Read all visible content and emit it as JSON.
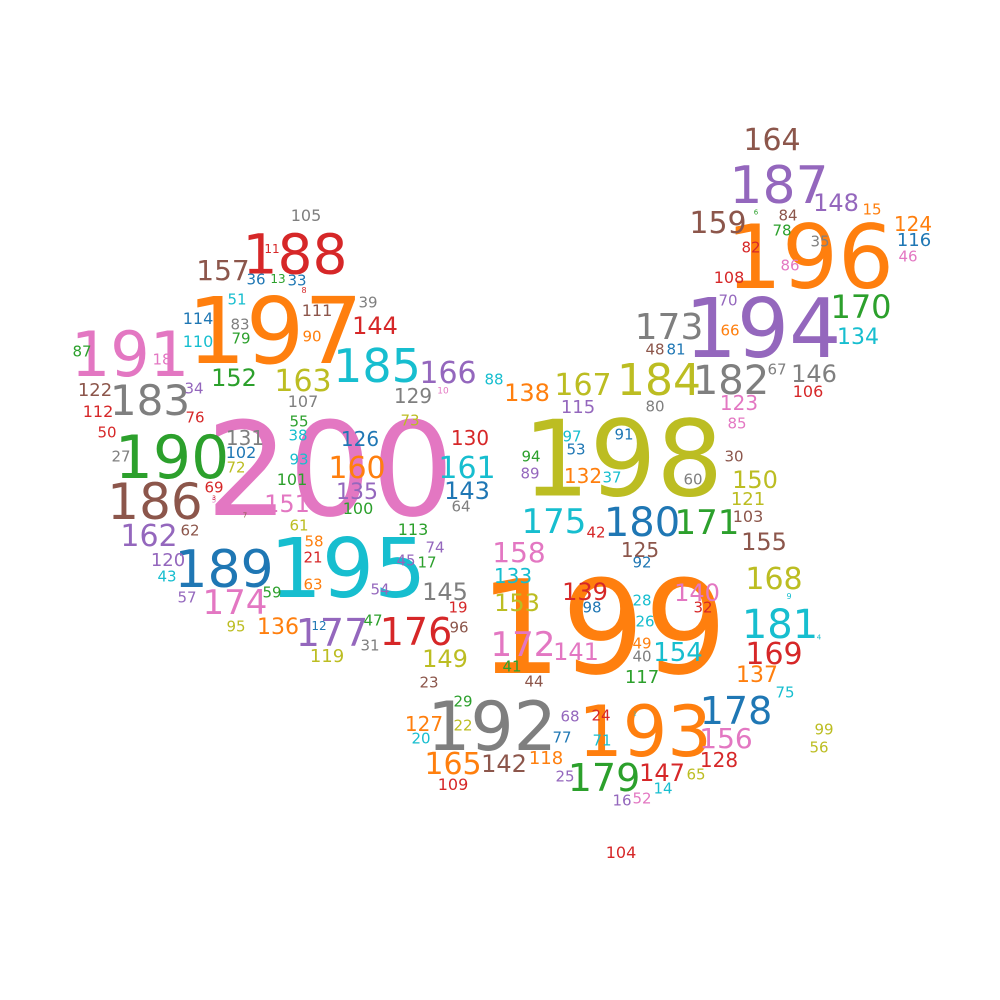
{
  "palette": {
    "blue": "#1f77b4",
    "orange": "#ff7f0e",
    "green": "#2ca02c",
    "red": "#d62728",
    "purple": "#9467bd",
    "brown": "#8c564b",
    "pink": "#e377c2",
    "gray": "#7f7f7f",
    "olive": "#bcbd22",
    "cyan": "#17becf"
  },
  "words": [
    {
      "text": "200",
      "color": "pink"
    },
    {
      "text": "199",
      "color": "orange"
    },
    {
      "text": "198",
      "color": "olive"
    },
    {
      "text": "197",
      "color": "orange"
    },
    {
      "text": "196",
      "color": "orange"
    },
    {
      "text": "195",
      "color": "cyan"
    },
    {
      "text": "194",
      "color": "purple"
    },
    {
      "text": "193",
      "color": "orange"
    },
    {
      "text": "192",
      "color": "gray"
    },
    {
      "text": "191",
      "color": "pink"
    },
    {
      "text": "190",
      "color": "green"
    },
    {
      "text": "189",
      "color": "blue"
    },
    {
      "text": "188",
      "color": "red"
    },
    {
      "text": "187",
      "color": "purple"
    },
    {
      "text": "186",
      "color": "brown"
    },
    {
      "text": "185",
      "color": "cyan"
    },
    {
      "text": "184",
      "color": "olive"
    },
    {
      "text": "183",
      "color": "gray"
    },
    {
      "text": "182",
      "color": "gray"
    },
    {
      "text": "181",
      "color": "cyan"
    },
    {
      "text": "180",
      "color": "blue"
    },
    {
      "text": "179",
      "color": "green"
    },
    {
      "text": "178",
      "color": "blue"
    },
    {
      "text": "177",
      "color": "purple"
    },
    {
      "text": "176",
      "color": "red"
    },
    {
      "text": "175",
      "color": "cyan"
    },
    {
      "text": "174",
      "color": "pink"
    },
    {
      "text": "173",
      "color": "gray"
    },
    {
      "text": "172",
      "color": "pink"
    },
    {
      "text": "171",
      "color": "green"
    },
    {
      "text": "170",
      "color": "green"
    },
    {
      "text": "169",
      "color": "red"
    },
    {
      "text": "168",
      "color": "olive"
    },
    {
      "text": "167",
      "color": "olive"
    },
    {
      "text": "166",
      "color": "purple"
    },
    {
      "text": "165",
      "color": "orange"
    },
    {
      "text": "164",
      "color": "brown"
    },
    {
      "text": "163",
      "color": "olive"
    },
    {
      "text": "162",
      "color": "purple"
    },
    {
      "text": "161",
      "color": "cyan"
    },
    {
      "text": "160",
      "color": "orange"
    },
    {
      "text": "159",
      "color": "brown"
    },
    {
      "text": "158",
      "color": "pink"
    },
    {
      "text": "157",
      "color": "brown"
    },
    {
      "text": "156",
      "color": "pink"
    },
    {
      "text": "155",
      "color": "brown"
    },
    {
      "text": "154",
      "color": "cyan"
    },
    {
      "text": "153",
      "color": "olive"
    },
    {
      "text": "152",
      "color": "green"
    },
    {
      "text": "151",
      "color": "pink"
    },
    {
      "text": "150",
      "color": "olive"
    },
    {
      "text": "149",
      "color": "olive"
    },
    {
      "text": "148",
      "color": "purple"
    },
    {
      "text": "147",
      "color": "red"
    },
    {
      "text": "146",
      "color": "gray"
    },
    {
      "text": "145",
      "color": "gray"
    },
    {
      "text": "144",
      "color": "red"
    },
    {
      "text": "143",
      "color": "blue"
    },
    {
      "text": "142",
      "color": "brown"
    },
    {
      "text": "141",
      "color": "pink"
    },
    {
      "text": "140",
      "color": "pink"
    },
    {
      "text": "139",
      "color": "red"
    },
    {
      "text": "138",
      "color": "orange"
    },
    {
      "text": "137",
      "color": "orange"
    },
    {
      "text": "136",
      "color": "orange"
    },
    {
      "text": "135",
      "color": "purple"
    },
    {
      "text": "134",
      "color": "cyan"
    },
    {
      "text": "133",
      "color": "cyan"
    },
    {
      "text": "132",
      "color": "orange"
    },
    {
      "text": "131",
      "color": "gray"
    },
    {
      "text": "130",
      "color": "red"
    },
    {
      "text": "129",
      "color": "gray"
    },
    {
      "text": "128",
      "color": "red"
    },
    {
      "text": "127",
      "color": "orange"
    },
    {
      "text": "126",
      "color": "blue"
    },
    {
      "text": "125",
      "color": "brown"
    },
    {
      "text": "124",
      "color": "orange"
    },
    {
      "text": "123",
      "color": "pink"
    },
    {
      "text": "122",
      "color": "brown"
    },
    {
      "text": "121",
      "color": "olive"
    },
    {
      "text": "120",
      "color": "purple"
    },
    {
      "text": "119",
      "color": "olive"
    },
    {
      "text": "118",
      "color": "orange"
    },
    {
      "text": "117",
      "color": "green"
    },
    {
      "text": "116",
      "color": "blue"
    },
    {
      "text": "115",
      "color": "purple"
    },
    {
      "text": "114",
      "color": "blue"
    },
    {
      "text": "113",
      "color": "green"
    },
    {
      "text": "112",
      "color": "red"
    },
    {
      "text": "111",
      "color": "brown"
    },
    {
      "text": "110",
      "color": "cyan"
    },
    {
      "text": "109",
      "color": "red"
    },
    {
      "text": "108",
      "color": "red"
    },
    {
      "text": "107",
      "color": "gray"
    },
    {
      "text": "106",
      "color": "red"
    },
    {
      "text": "105",
      "color": "gray"
    },
    {
      "text": "104",
      "color": "red"
    },
    {
      "text": "103",
      "color": "brown"
    },
    {
      "text": "102",
      "color": "blue"
    },
    {
      "text": "101",
      "color": "green"
    },
    {
      "text": "100",
      "color": "green"
    },
    {
      "text": "99",
      "color": "olive"
    },
    {
      "text": "98",
      "color": "blue"
    },
    {
      "text": "97",
      "color": "cyan"
    },
    {
      "text": "96",
      "color": "brown"
    },
    {
      "text": "95",
      "color": "olive"
    },
    {
      "text": "94",
      "color": "green"
    },
    {
      "text": "93",
      "color": "cyan"
    },
    {
      "text": "92",
      "color": "blue"
    },
    {
      "text": "91",
      "color": "blue"
    },
    {
      "text": "90",
      "color": "orange"
    },
    {
      "text": "89",
      "color": "purple"
    },
    {
      "text": "88",
      "color": "cyan"
    },
    {
      "text": "87",
      "color": "green"
    },
    {
      "text": "86",
      "color": "pink"
    },
    {
      "text": "85",
      "color": "pink"
    },
    {
      "text": "84",
      "color": "brown"
    },
    {
      "text": "83",
      "color": "gray"
    },
    {
      "text": "82",
      "color": "red"
    },
    {
      "text": "81",
      "color": "blue"
    },
    {
      "text": "80",
      "color": "gray"
    },
    {
      "text": "79",
      "color": "green"
    },
    {
      "text": "78",
      "color": "green"
    },
    {
      "text": "77",
      "color": "blue"
    },
    {
      "text": "76",
      "color": "red"
    },
    {
      "text": "75",
      "color": "cyan"
    },
    {
      "text": "74",
      "color": "purple"
    },
    {
      "text": "73",
      "color": "olive"
    },
    {
      "text": "72",
      "color": "olive"
    },
    {
      "text": "71",
      "color": "cyan"
    },
    {
      "text": "70",
      "color": "purple"
    },
    {
      "text": "69",
      "color": "red"
    },
    {
      "text": "68",
      "color": "purple"
    },
    {
      "text": "67",
      "color": "gray"
    },
    {
      "text": "66",
      "color": "orange"
    },
    {
      "text": "65",
      "color": "olive"
    },
    {
      "text": "64",
      "color": "gray"
    },
    {
      "text": "63",
      "color": "orange"
    },
    {
      "text": "62",
      "color": "brown"
    },
    {
      "text": "61",
      "color": "olive"
    },
    {
      "text": "60",
      "color": "gray"
    },
    {
      "text": "59",
      "color": "green"
    },
    {
      "text": "58",
      "color": "orange"
    },
    {
      "text": "57",
      "color": "purple"
    },
    {
      "text": "56",
      "color": "olive"
    },
    {
      "text": "55",
      "color": "green"
    },
    {
      "text": "54",
      "color": "purple"
    },
    {
      "text": "53",
      "color": "blue"
    },
    {
      "text": "52",
      "color": "pink"
    },
    {
      "text": "51",
      "color": "cyan"
    },
    {
      "text": "50",
      "color": "red"
    },
    {
      "text": "49",
      "color": "orange"
    },
    {
      "text": "48",
      "color": "brown"
    },
    {
      "text": "47",
      "color": "green"
    },
    {
      "text": "46",
      "color": "pink"
    },
    {
      "text": "45",
      "color": "purple"
    },
    {
      "text": "44",
      "color": "brown"
    },
    {
      "text": "43",
      "color": "cyan"
    },
    {
      "text": "42",
      "color": "red"
    },
    {
      "text": "41",
      "color": "green"
    },
    {
      "text": "40",
      "color": "gray"
    },
    {
      "text": "39",
      "color": "gray"
    },
    {
      "text": "38",
      "color": "cyan"
    },
    {
      "text": "37",
      "color": "cyan"
    },
    {
      "text": "36",
      "color": "blue"
    },
    {
      "text": "35",
      "color": "gray"
    },
    {
      "text": "34",
      "color": "purple"
    },
    {
      "text": "33",
      "color": "blue"
    },
    {
      "text": "32",
      "color": "red"
    },
    {
      "text": "31",
      "color": "gray"
    },
    {
      "text": "30",
      "color": "brown"
    },
    {
      "text": "29",
      "color": "green"
    },
    {
      "text": "28",
      "color": "cyan"
    },
    {
      "text": "27",
      "color": "gray"
    },
    {
      "text": "26",
      "color": "cyan"
    },
    {
      "text": "25",
      "color": "purple"
    },
    {
      "text": "24",
      "color": "red"
    },
    {
      "text": "23",
      "color": "brown"
    },
    {
      "text": "22",
      "color": "olive"
    },
    {
      "text": "21",
      "color": "red"
    },
    {
      "text": "20",
      "color": "cyan"
    },
    {
      "text": "19",
      "color": "red"
    },
    {
      "text": "18",
      "color": "pink"
    },
    {
      "text": "17",
      "color": "green"
    },
    {
      "text": "16",
      "color": "purple"
    },
    {
      "text": "15",
      "color": "orange"
    },
    {
      "text": "14",
      "color": "cyan"
    },
    {
      "text": "13",
      "color": "green"
    },
    {
      "text": "12",
      "color": "blue"
    },
    {
      "text": "11",
      "color": "red"
    },
    {
      "text": "10",
      "color": "pink"
    },
    {
      "text": "9",
      "color": "cyan"
    },
    {
      "text": "8",
      "color": "red"
    },
    {
      "text": "7",
      "color": "brown"
    },
    {
      "text": "6",
      "color": "green"
    },
    {
      "text": "5",
      "color": "pink"
    },
    {
      "text": "4",
      "color": "cyan"
    },
    {
      "text": "3",
      "color": "red"
    },
    {
      "text": "1",
      "color": "cyan"
    }
  ]
}
